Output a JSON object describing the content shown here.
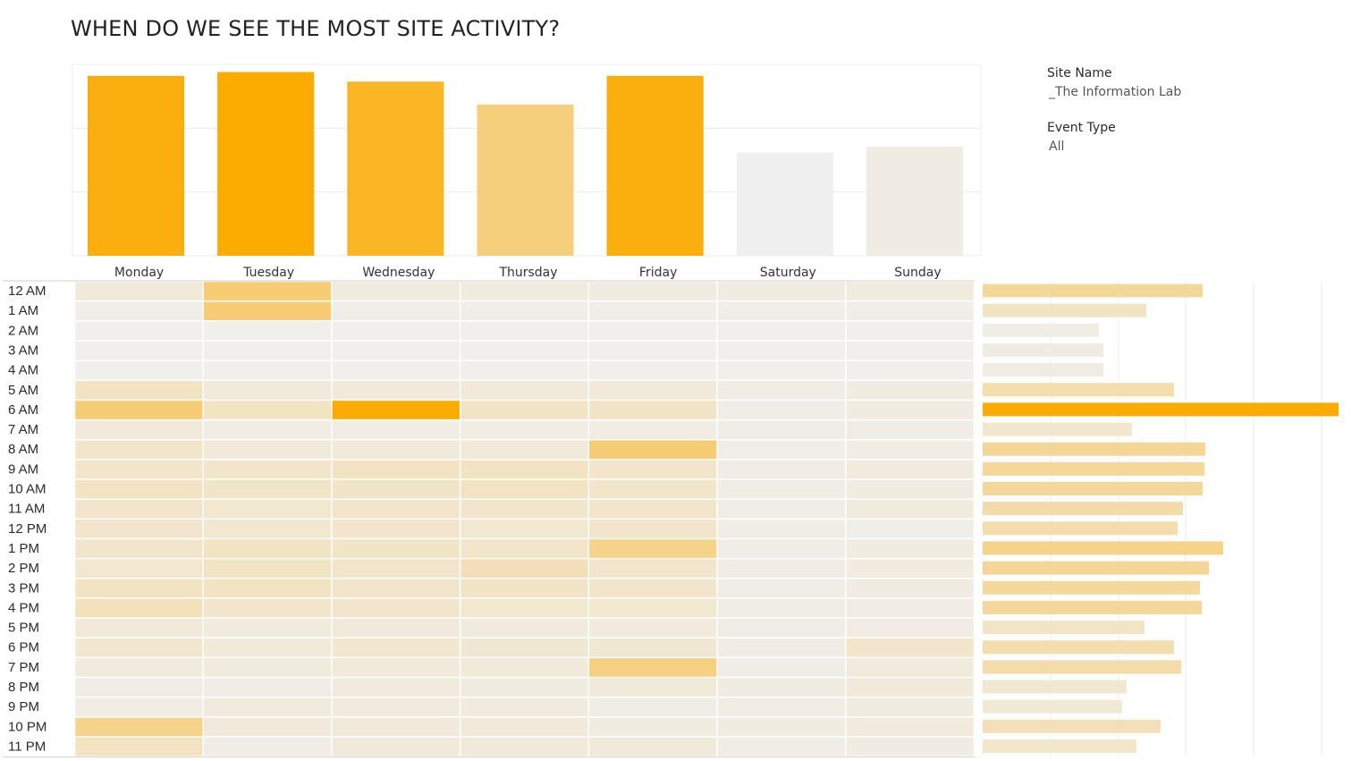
{
  "title": "WHEN DO WE SEE THE MOST SITE ACTIVITY?",
  "filters": {
    "site_name": {
      "title": "Site Name",
      "value": "_The Information Lab"
    },
    "event_type": {
      "title": "Event Type",
      "value": "All"
    }
  },
  "colors": {
    "high": "#fcab00",
    "low": "#f0f0f0",
    "mid": "#f5d38a",
    "gridline": "#ececec",
    "cell_border": "#ffffff"
  },
  "chart_data": [
    {
      "type": "bar",
      "title": "",
      "categories": [
        "Monday",
        "Tuesday",
        "Wednesday",
        "Thursday",
        "Friday",
        "Saturday",
        "Sunday"
      ],
      "values": [
        94,
        96,
        91,
        79,
        94,
        54,
        57
      ],
      "ylim": [
        0,
        100
      ],
      "grid": true,
      "color_by_value": true
    },
    {
      "type": "heatmap",
      "x_categories": [
        "Monday",
        "Tuesday",
        "Wednesday",
        "Thursday",
        "Friday",
        "Saturday",
        "Sunday"
      ],
      "y_categories": [
        "12 AM",
        "1 AM",
        "2 AM",
        "3 AM",
        "4 AM",
        "5 AM",
        "6 AM",
        "7 AM",
        "8 AM",
        "9 AM",
        "10 AM",
        "11 AM",
        "12 PM",
        "1 PM",
        "2 PM",
        "3 PM",
        "4 PM",
        "5 PM",
        "6 PM",
        "7 PM",
        "8 PM",
        "9 PM",
        "10 PM",
        "11 PM"
      ],
      "values": [
        [
          0.12,
          0.62,
          0.1,
          0.1,
          0.08,
          0.08,
          0.1
        ],
        [
          0.04,
          0.62,
          0.04,
          0.04,
          0.04,
          0.04,
          0.04
        ],
        [
          0.02,
          0.02,
          0.02,
          0.02,
          0.02,
          0.02,
          0.02
        ],
        [
          0.02,
          0.02,
          0.02,
          0.02,
          0.02,
          0.02,
          0.02
        ],
        [
          0.02,
          0.02,
          0.02,
          0.02,
          0.02,
          0.02,
          0.02
        ],
        [
          0.25,
          0.12,
          0.12,
          0.12,
          0.12,
          0.05,
          0.08
        ],
        [
          0.62,
          0.25,
          1.0,
          0.22,
          0.22,
          0.05,
          0.08
        ],
        [
          0.12,
          0.06,
          0.06,
          0.06,
          0.06,
          0.05,
          0.05
        ],
        [
          0.2,
          0.12,
          0.12,
          0.12,
          0.62,
          0.04,
          0.06
        ],
        [
          0.2,
          0.2,
          0.25,
          0.25,
          0.2,
          0.05,
          0.1
        ],
        [
          0.25,
          0.22,
          0.22,
          0.25,
          0.2,
          0.05,
          0.08
        ],
        [
          0.2,
          0.18,
          0.2,
          0.2,
          0.2,
          0.05,
          0.1
        ],
        [
          0.2,
          0.18,
          0.2,
          0.18,
          0.2,
          0.05,
          0.04
        ],
        [
          0.2,
          0.25,
          0.22,
          0.2,
          0.55,
          0.05,
          0.08
        ],
        [
          0.18,
          0.25,
          0.2,
          0.3,
          0.2,
          0.05,
          0.08
        ],
        [
          0.25,
          0.25,
          0.2,
          0.22,
          0.2,
          0.05,
          0.08
        ],
        [
          0.28,
          0.2,
          0.2,
          0.18,
          0.18,
          0.05,
          0.06
        ],
        [
          0.12,
          0.1,
          0.12,
          0.1,
          0.1,
          0.05,
          0.06
        ],
        [
          0.18,
          0.12,
          0.18,
          0.15,
          0.15,
          0.05,
          0.2
        ],
        [
          0.1,
          0.1,
          0.12,
          0.12,
          0.58,
          0.05,
          0.1
        ],
        [
          0.06,
          0.06,
          0.1,
          0.08,
          0.12,
          0.08,
          0.12
        ],
        [
          0.06,
          0.1,
          0.1,
          0.1,
          0.05,
          0.06,
          0.08
        ],
        [
          0.55,
          0.12,
          0.12,
          0.12,
          0.08,
          0.08,
          0.1
        ],
        [
          0.25,
          0.05,
          0.12,
          0.12,
          0.12,
          0.05,
          0.08
        ]
      ]
    },
    {
      "type": "bar",
      "orientation": "horizontal",
      "categories": [
        "12 AM",
        "1 AM",
        "2 AM",
        "3 AM",
        "4 AM",
        "5 AM",
        "6 AM",
        "7 AM",
        "8 AM",
        "9 AM",
        "10 AM",
        "11 AM",
        "12 PM",
        "1 PM",
        "2 PM",
        "3 PM",
        "4 PM",
        "5 PM",
        "6 PM",
        "7 PM",
        "8 PM",
        "9 PM",
        "10 PM",
        "11 PM"
      ],
      "values": [
        246,
        183,
        130,
        135,
        135,
        214,
        398,
        167,
        249,
        248,
        246,
        224,
        218,
        269,
        253,
        243,
        245,
        181,
        214,
        222,
        161,
        156,
        199,
        172
      ],
      "xlim": [
        0,
        420
      ],
      "grid": true,
      "color_by_value": true
    }
  ]
}
